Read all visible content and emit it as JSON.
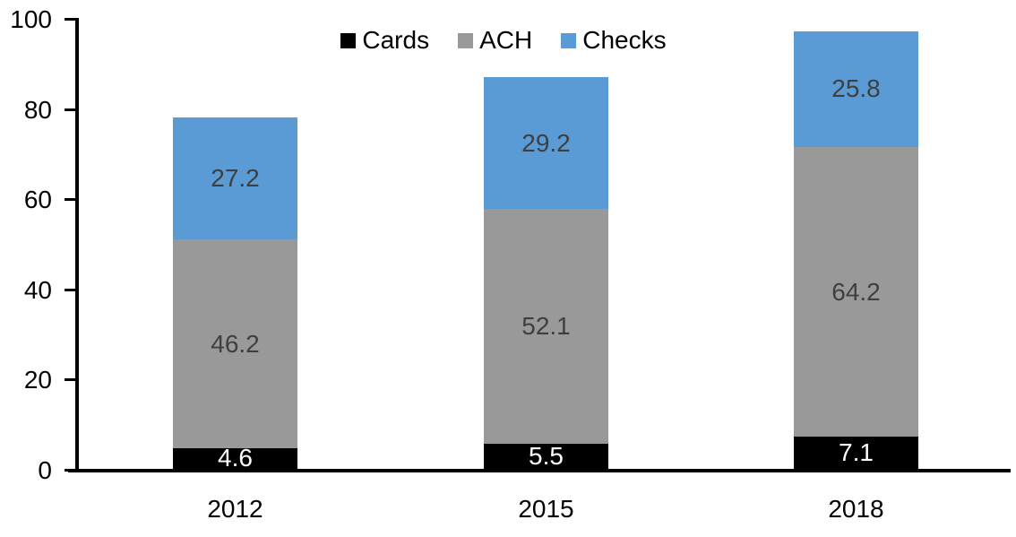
{
  "chart_data": {
    "type": "bar",
    "stacked": true,
    "title": "",
    "xlabel": "",
    "ylabel": "",
    "categories": [
      "2012",
      "2015",
      "2018"
    ],
    "series": [
      {
        "name": "Cards",
        "color": "#000000",
        "label_color": "#ffffff",
        "values": [
          4.6,
          5.5,
          7.1
        ]
      },
      {
        "name": "ACH",
        "color": "#999999",
        "label_color": "#3f3f3f",
        "values": [
          46.2,
          52.1,
          64.2
        ]
      },
      {
        "name": "Checks",
        "color": "#5b9bd5",
        "label_color": "#3f3f3f",
        "values": [
          27.2,
          29.2,
          25.8
        ]
      }
    ],
    "stack_totals": [
      78.0,
      86.8,
      97.1
    ],
    "ylim": [
      0,
      100
    ],
    "y_ticks": [
      0,
      20,
      40,
      60,
      80,
      100
    ],
    "grid": false,
    "data_labels": true,
    "legend_position": "top",
    "axis_color": "#000000",
    "background_color": "#ffffff"
  }
}
